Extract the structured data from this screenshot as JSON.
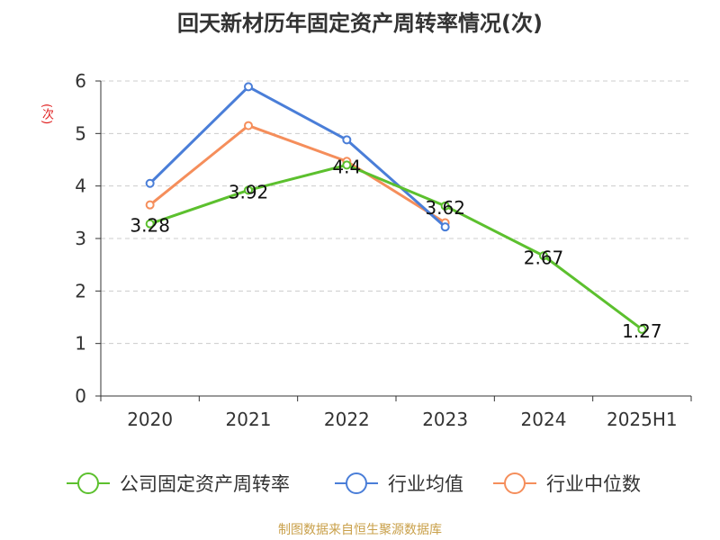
{
  "chart_data": {
    "type": "line",
    "title": "回天新材历年固定资产周转率情况(次)",
    "ylabel": "(次)",
    "categories": [
      "2020",
      "2021",
      "2022",
      "2023",
      "2024",
      "2025H1"
    ],
    "ylim": [
      0,
      6
    ],
    "yticks": [
      0,
      1,
      2,
      3,
      4,
      5,
      6
    ],
    "grid": true,
    "legend_position": "bottom",
    "series": [
      {
        "name": "公司固定资产周转率",
        "color": "#5cc02e",
        "values": [
          3.28,
          3.92,
          4.4,
          3.62,
          2.67,
          1.27
        ],
        "labels": [
          "3.28",
          "3.92",
          "4.4",
          "3.62",
          "2.67",
          "1.27"
        ]
      },
      {
        "name": "行业均值",
        "color": "#4a7ed8",
        "values": [
          4.05,
          5.89,
          4.88,
          3.22,
          null,
          null
        ]
      },
      {
        "name": "行业中位数",
        "color": "#f58e5b",
        "values": [
          3.64,
          5.15,
          4.47,
          3.3,
          null,
          null
        ]
      }
    ]
  },
  "source": "制图数据来自恒生聚源数据库"
}
